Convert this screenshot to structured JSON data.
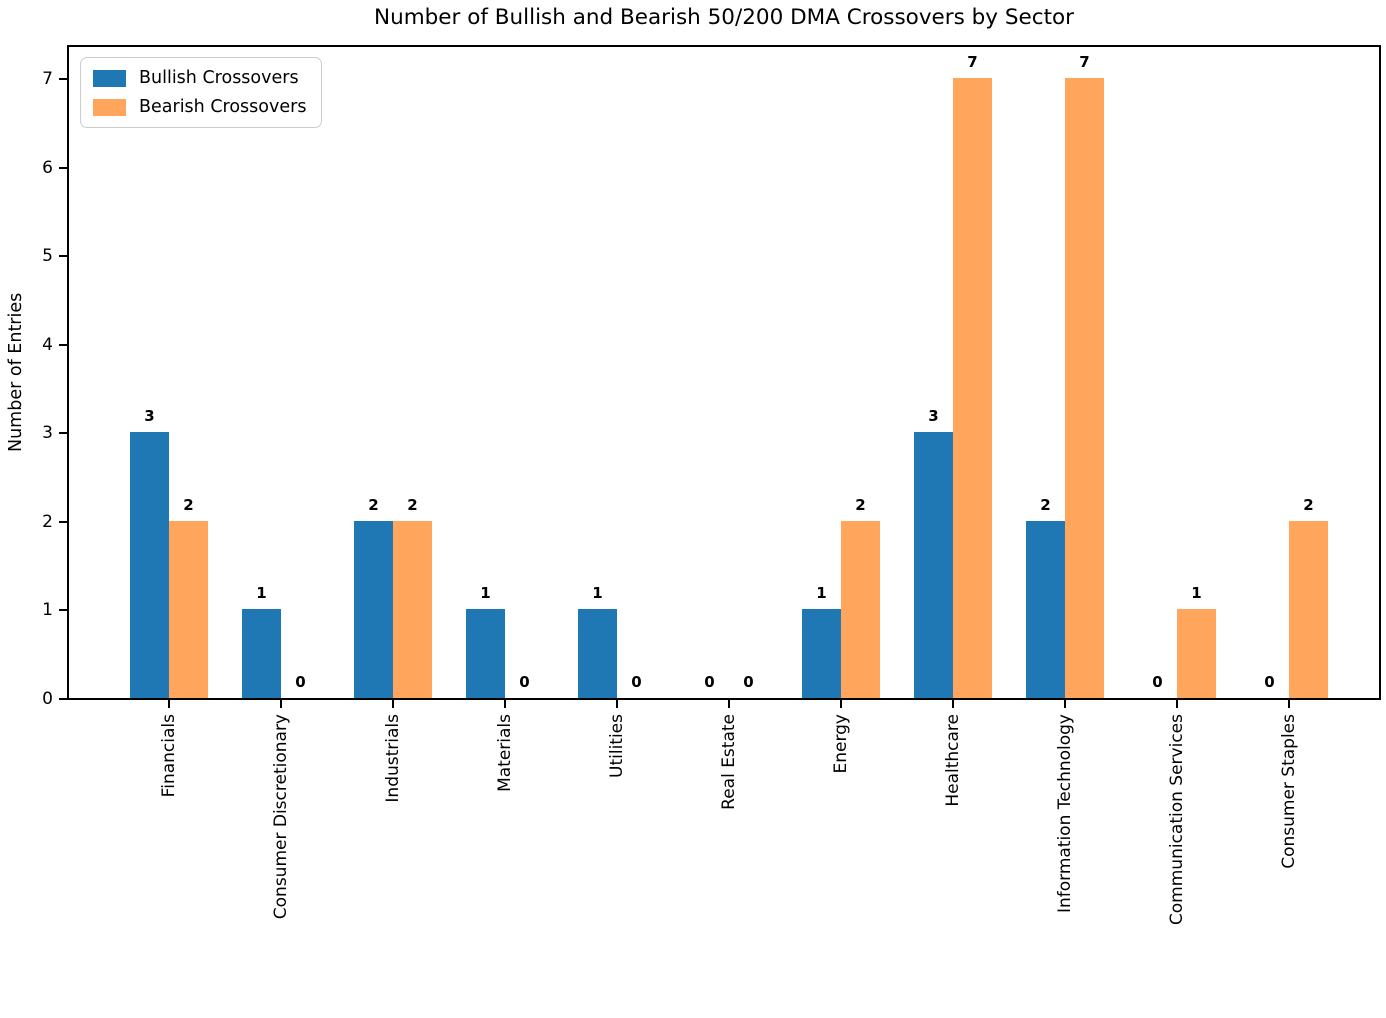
{
  "chart_data": {
    "type": "bar",
    "title": "Number of Bullish and Bearish 50/200 DMA Crossovers by Sector",
    "xlabel": "",
    "ylabel": "Number of Entries",
    "categories": [
      "Financials",
      "Consumer Discretionary",
      "Industrials",
      "Materials",
      "Utilities",
      "Real Estate",
      "Energy",
      "Healthcare",
      "Information Technology",
      "Communication Services",
      "Consumer Staples"
    ],
    "series": [
      {
        "name": "Bullish Crossovers",
        "color": "#1f77b4",
        "values": [
          3,
          1,
          2,
          1,
          1,
          0,
          1,
          3,
          2,
          0,
          0
        ]
      },
      {
        "name": "Bearish Crossovers",
        "color": "#ffa65c",
        "values": [
          2,
          0,
          2,
          0,
          0,
          0,
          2,
          7,
          7,
          1,
          2
        ]
      }
    ],
    "yticks": [
      0,
      1,
      2,
      3,
      4,
      5,
      6,
      7
    ],
    "ylim": [
      0,
      7.35
    ],
    "grid": false,
    "legend_position": "upper left",
    "bar_value_labels": true,
    "x_tick_rotation": 90
  }
}
